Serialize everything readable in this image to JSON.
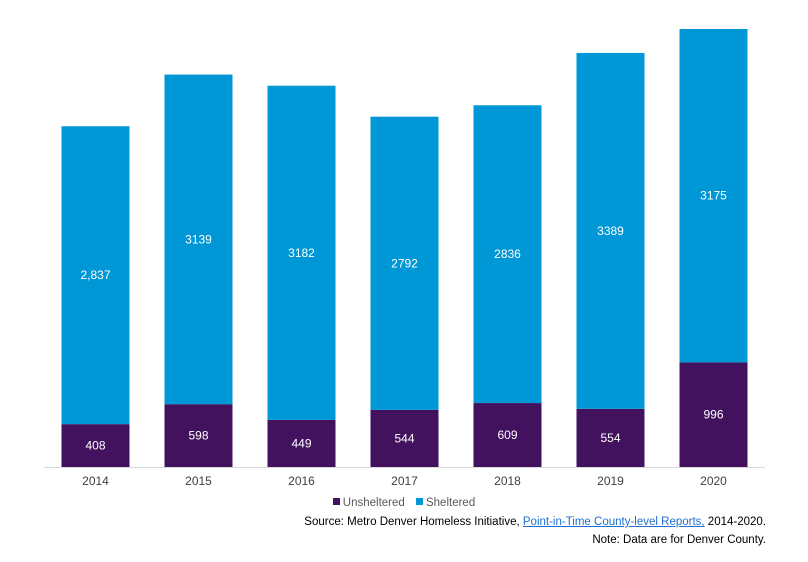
{
  "chart_data": {
    "type": "bar",
    "stacked": true,
    "title": "",
    "xlabel": "",
    "ylabel": "",
    "categories": [
      "2014",
      "2015",
      "2016",
      "2017",
      "2018",
      "2019",
      "2020"
    ],
    "series": [
      {
        "name": "Unsheltered",
        "color": "#43125f",
        "values": [
          408,
          598,
          449,
          544,
          609,
          554,
          996
        ],
        "labels": [
          "408",
          "598",
          "449",
          "544",
          "609",
          "554",
          "996"
        ]
      },
      {
        "name": "Sheltered",
        "color": "#0097d6",
        "values": [
          2837,
          3139,
          3182,
          2792,
          2836,
          3389,
          3175
        ],
        "labels": [
          "2,837",
          "3139",
          "3182",
          "2792",
          "2836",
          "3389",
          "3175"
        ]
      }
    ],
    "ylim": [
      0,
      4171
    ],
    "grid": false,
    "y_axis_visible": false,
    "legend_position": "bottom"
  },
  "legend": {
    "items": [
      {
        "label": "Unsheltered",
        "color": "#43125f"
      },
      {
        "label": "Sheltered",
        "color": "#0097d6"
      }
    ]
  },
  "footer": {
    "source_prefix": "Source: Metro Denver Homeless Initiative, ",
    "source_link": "Point-in-Time County-level Reports,",
    "source_suffix": " 2014-2020.",
    "note": "Note: Data are for Denver County."
  }
}
